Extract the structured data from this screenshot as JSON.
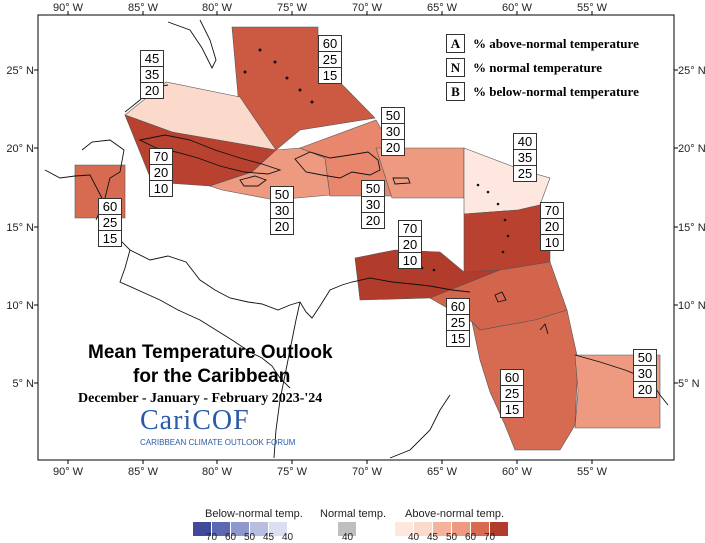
{
  "title": {
    "line1": "Mean Temperature Outlook",
    "line2": "for the Caribbean",
    "period": "December - January - February 2023-'24"
  },
  "logo": {
    "name": "CariCOF",
    "subtitle": "CARIBBEAN CLIMATE OUTLOOK FORUM"
  },
  "axes": {
    "top_x": [
      "90° W",
      "85° W",
      "80° W",
      "75° W",
      "70° W",
      "65° W",
      "60° W",
      "55° W"
    ],
    "bottom_x": [
      "90° W",
      "85° W",
      "80° W",
      "75° W",
      "70° W",
      "65° W",
      "60° W",
      "55° W"
    ],
    "left_y": [
      "25° N",
      "20° N",
      "15° N",
      "10° N",
      "5° N"
    ],
    "right_y": [
      "25° N",
      "20° N",
      "15° N",
      "10° N",
      "5° N"
    ]
  },
  "key": [
    {
      "letter": "A",
      "text": "% above-normal temperature"
    },
    {
      "letter": "N",
      "text": "% normal temperature"
    },
    {
      "letter": "B",
      "text": "% below-normal temperature"
    }
  ],
  "regions": [
    {
      "name": "bahamas",
      "values": [
        "60",
        "25",
        "15"
      ],
      "color": "#cc5a42"
    },
    {
      "name": "cuba-western",
      "values": [
        "45",
        "35",
        "20"
      ],
      "color": "#fbd9cb"
    },
    {
      "name": "cuba-south-cayman",
      "values": [
        "70",
        "20",
        "10"
      ],
      "color": "#b8412f"
    },
    {
      "name": "jamaica-hispaniola-west",
      "values": [
        "50",
        "30",
        "20"
      ],
      "color": "#ee9a81"
    },
    {
      "name": "hispaniola-east",
      "values": [
        "50",
        "30",
        "20"
      ],
      "color": "#e8876d"
    },
    {
      "name": "puerto-rico",
      "values": [
        "50",
        "30",
        "20"
      ],
      "color": "#ee9a81"
    },
    {
      "name": "leeward-north",
      "values": [
        "40",
        "35",
        "25"
      ],
      "color": "#fde7de"
    },
    {
      "name": "windward",
      "values": [
        "70",
        "20",
        "10"
      ],
      "color": "#b8412f"
    },
    {
      "name": "belize",
      "values": [
        "60",
        "25",
        "15"
      ],
      "color": "#d66b52"
    },
    {
      "name": "abc-islands",
      "values": [
        "70",
        "20",
        "10"
      ],
      "color": "#b23c2b"
    },
    {
      "name": "trinidad",
      "values": [
        "60",
        "25",
        "15"
      ],
      "color": "#d4654d"
    },
    {
      "name": "guyana",
      "values": [
        "60",
        "25",
        "15"
      ],
      "color": "#d66b52"
    },
    {
      "name": "suriname-french-guiana",
      "values": [
        "50",
        "30",
        "20"
      ],
      "color": "#ee9a81"
    }
  ],
  "colorbar": {
    "below_title": "Below-normal temp.",
    "normal_title": "Normal temp.",
    "above_title": "Above-normal temp.",
    "below_ticks": [
      "70",
      "60",
      "50",
      "45",
      "40"
    ],
    "normal_ticks": [
      "40"
    ],
    "above_ticks": [
      "40",
      "45",
      "50",
      "60",
      "70"
    ],
    "below_colors": [
      "#3f4a9b",
      "#5c68b4",
      "#8f98cc",
      "#b8bee0",
      "#dcdff0"
    ],
    "normal_color": "#bfbfbf",
    "above_colors": [
      "#fde7de",
      "#fbd9cb",
      "#f4b39d",
      "#ee9a81",
      "#d66b52",
      "#b23c2b"
    ]
  }
}
